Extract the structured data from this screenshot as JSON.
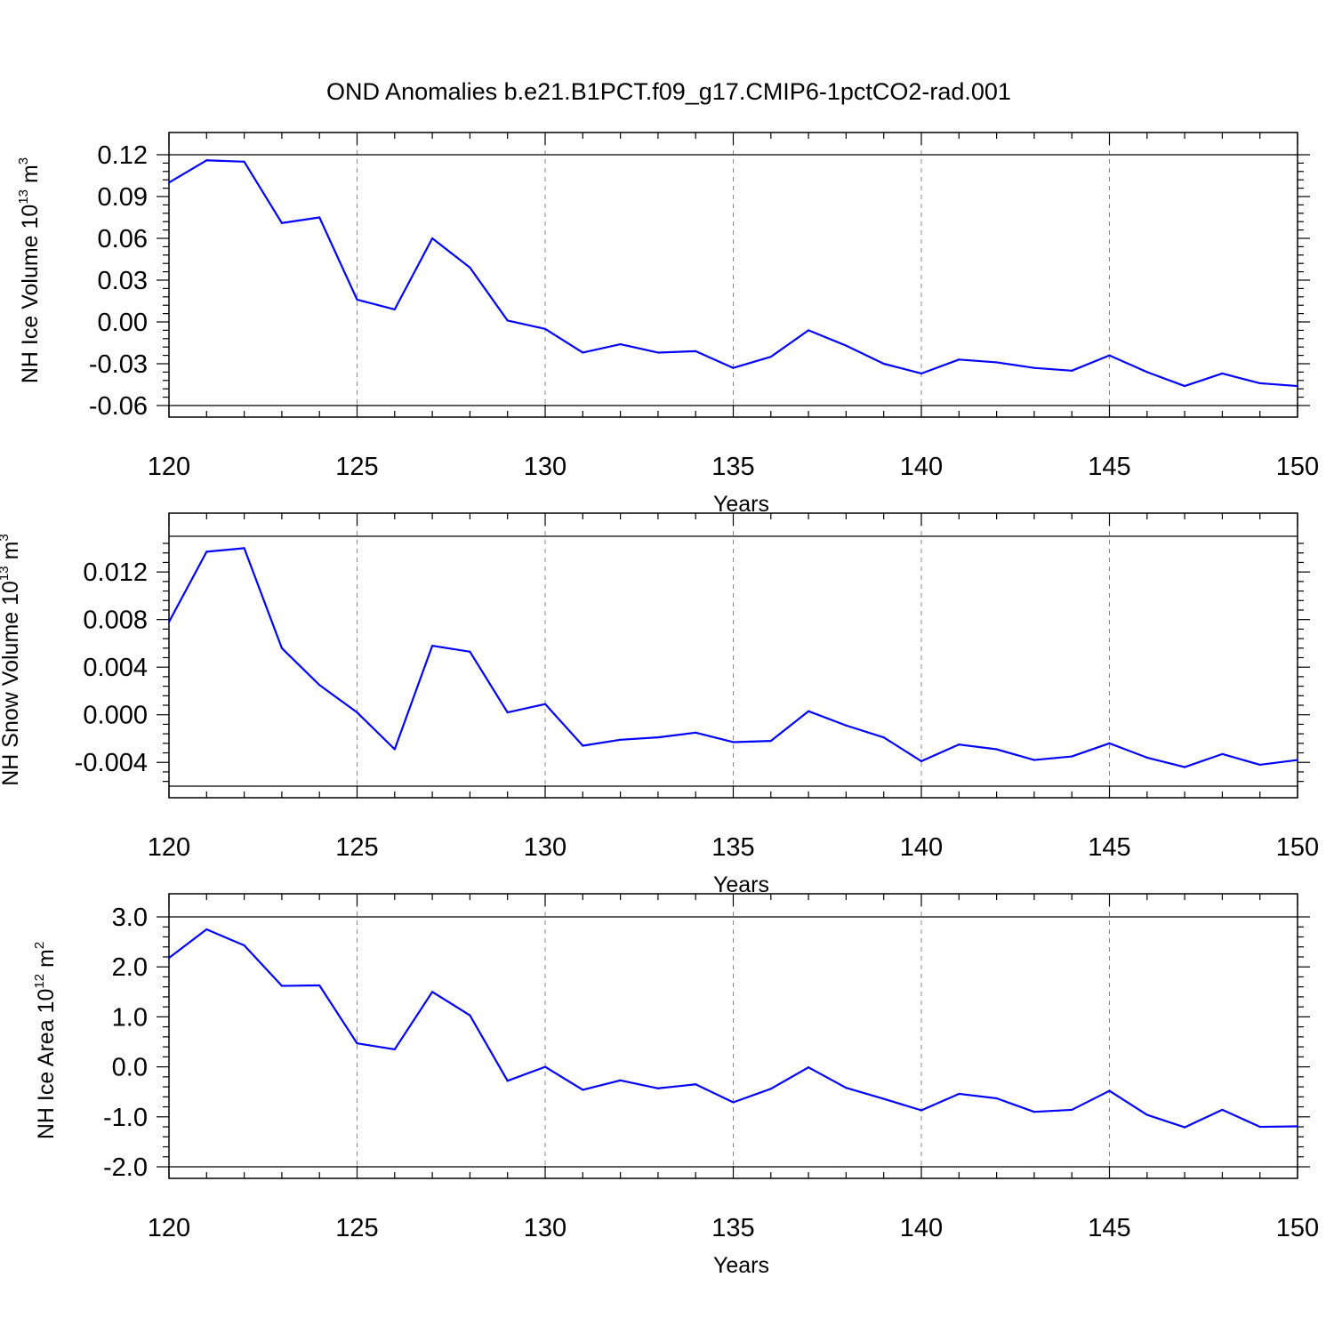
{
  "title": "OND Anomalies b.e21.B1PCT.f09_g17.CMIP6-1pctCO2-rad.001",
  "colors": {
    "line": "#0000ff",
    "axis": "#000000",
    "grid": "#888888",
    "background": "#ffffff"
  },
  "chart_data": [
    {
      "type": "line",
      "ylabel": {
        "text": "NH Ice Volume 10",
        "sup": "13",
        "unit": " m",
        "unit_sup": "3"
      },
      "xlabel": "Years",
      "xlim": [
        120,
        150
      ],
      "ylim": [
        -0.06,
        0.12
      ],
      "yticks": [
        -0.06,
        -0.03,
        0.0,
        0.03,
        0.06,
        0.09,
        0.12
      ],
      "ytick_labels": [
        "-0.06",
        "-0.03",
        "0.00",
        "0.03",
        "0.06",
        "0.09",
        "0.12"
      ],
      "xticks": [
        120,
        125,
        130,
        135,
        140,
        145,
        150
      ],
      "xtick_labels": [
        "120",
        "125",
        "130",
        "135",
        "140",
        "145",
        "150"
      ],
      "grid": "vertical dashed at major x ticks",
      "series": [
        {
          "x": [
            120,
            121,
            122,
            123,
            124,
            125,
            126,
            127,
            128,
            129,
            130,
            131,
            132,
            133,
            134,
            135,
            136,
            137,
            138,
            139,
            140,
            141,
            142,
            143,
            144,
            145,
            146,
            147,
            148,
            149,
            150
          ],
          "values": [
            0.1,
            0.116,
            0.115,
            0.071,
            0.075,
            0.016,
            0.009,
            0.06,
            0.039,
            0.001,
            -0.005,
            -0.022,
            -0.016,
            -0.022,
            -0.021,
            -0.033,
            -0.025,
            -0.006,
            -0.017,
            -0.03,
            -0.037,
            -0.027,
            -0.029,
            -0.033,
            -0.035,
            -0.024,
            -0.036,
            -0.046,
            -0.037,
            -0.044,
            -0.046
          ]
        }
      ]
    },
    {
      "type": "line",
      "ylabel": {
        "text": "NH Snow Volume 10",
        "sup": "13",
        "unit": " m",
        "unit_sup": "3"
      },
      "xlabel": "Years",
      "xlim": [
        120,
        150
      ],
      "ylim": [
        -0.006,
        0.015
      ],
      "yticks": [
        -0.004,
        0.0,
        0.004,
        0.008,
        0.012
      ],
      "ytick_labels": [
        "-0.004",
        "0.000",
        "0.004",
        "0.008",
        "0.012"
      ],
      "xticks": [
        120,
        125,
        130,
        135,
        140,
        145,
        150
      ],
      "xtick_labels": [
        "120",
        "125",
        "130",
        "135",
        "140",
        "145",
        "150"
      ],
      "grid": "vertical dashed at major x ticks",
      "series": [
        {
          "x": [
            120,
            121,
            122,
            123,
            124,
            125,
            126,
            127,
            128,
            129,
            130,
            131,
            132,
            133,
            134,
            135,
            136,
            137,
            138,
            139,
            140,
            141,
            142,
            143,
            144,
            145,
            146,
            147,
            148,
            149,
            150
          ],
          "values": [
            0.0078,
            0.0137,
            0.014,
            0.0056,
            0.0025,
            0.0002,
            -0.0029,
            0.0058,
            0.0053,
            0.0002,
            0.0009,
            -0.0026,
            -0.0021,
            -0.0019,
            -0.0015,
            -0.0023,
            -0.0022,
            0.0003,
            -0.0009,
            -0.0019,
            -0.0039,
            -0.0025,
            -0.0029,
            -0.0038,
            -0.0035,
            -0.0024,
            -0.0036,
            -0.0044,
            -0.0033,
            -0.0042,
            -0.0038
          ]
        }
      ]
    },
    {
      "type": "line",
      "ylabel": {
        "text": "NH Ice Area 10",
        "sup": "12",
        "unit": " m",
        "unit_sup": "2"
      },
      "xlabel": "Years",
      "xlim": [
        120,
        150
      ],
      "ylim": [
        -2.0,
        3.0
      ],
      "yticks": [
        -2.0,
        -1.0,
        0.0,
        1.0,
        2.0,
        3.0
      ],
      "ytick_labels": [
        "-2.0",
        "-1.0",
        "0.0",
        "1.0",
        "2.0",
        "3.0"
      ],
      "xticks": [
        120,
        125,
        130,
        135,
        140,
        145,
        150
      ],
      "xtick_labels": [
        "120",
        "125",
        "130",
        "135",
        "140",
        "145",
        "150"
      ],
      "grid": "vertical dashed at major x ticks",
      "series": [
        {
          "x": [
            120,
            121,
            122,
            123,
            124,
            125,
            126,
            127,
            128,
            129,
            130,
            131,
            132,
            133,
            134,
            135,
            136,
            137,
            138,
            139,
            140,
            141,
            142,
            143,
            144,
            145,
            146,
            147,
            148,
            149,
            150
          ],
          "values": [
            2.18,
            2.75,
            2.43,
            1.62,
            1.63,
            0.47,
            0.35,
            1.5,
            1.03,
            -0.28,
            0.0,
            -0.46,
            -0.27,
            -0.43,
            -0.35,
            -0.71,
            -0.44,
            -0.01,
            -0.42,
            -0.64,
            -0.87,
            -0.54,
            -0.63,
            -0.9,
            -0.86,
            -0.48,
            -0.96,
            -1.21,
            -0.86,
            -1.2,
            -1.19
          ]
        }
      ]
    }
  ]
}
